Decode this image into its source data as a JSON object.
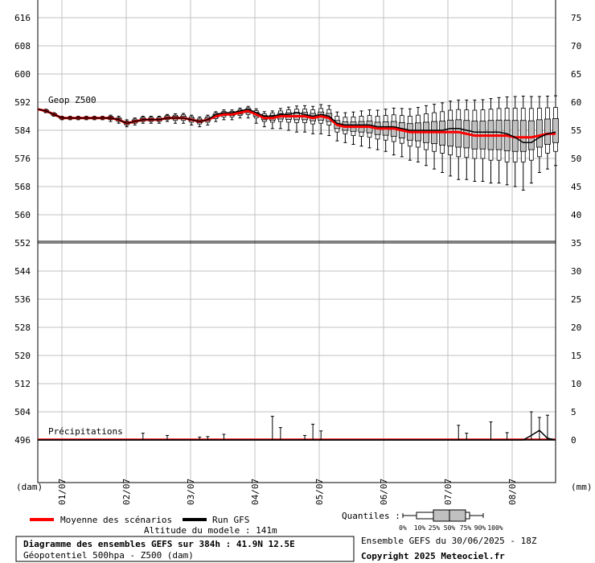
{
  "chart_data": {
    "type": "line",
    "title": "Diagramme des ensembles GEFS sur 384h : 41.9N 12.5E",
    "subtitle": "Géopotentiel 500hpa - Z500 (dam)",
    "run_info": "Ensemble GEFS du 30/06/2025 - 18Z",
    "copyright": "Copyright 2025 Meteociel.fr",
    "altitude": "Altitude du modele : 141m",
    "panel_top_label": "Geop Z500",
    "panel_bottom_label": "Précipitations",
    "left_unit": "(dam)",
    "right_unit": "(mm)",
    "left_ticks": [
      "616",
      "608",
      "600",
      "592",
      "584",
      "576",
      "568",
      "560",
      "552",
      "544",
      "536",
      "528",
      "520",
      "512",
      "504",
      "496"
    ],
    "right_ticks": [
      "75",
      "70",
      "65",
      "60",
      "55",
      "50",
      "45",
      "40",
      "35",
      "30",
      "25",
      "20",
      "15",
      "10",
      "5",
      "0"
    ],
    "x_labels": [
      "01/07",
      "02/07",
      "03/07",
      "04/07",
      "05/07",
      "06/07",
      "07/07",
      "08/07"
    ],
    "legend": {
      "mean": "Moyenne des scénarios",
      "run": "Run GFS",
      "quantiles_label": "Quantiles :",
      "quantile_marks": [
        "0%",
        "10%",
        "25%",
        "50%",
        "75%",
        "90%",
        "100%"
      ]
    },
    "colors": {
      "mean": "#ff0000",
      "run": "#000000",
      "box": "#c0c0c0",
      "grid": "#c0c0c0"
    },
    "z500": {
      "x_hours": [
        0,
        6,
        12,
        18,
        24,
        30,
        36,
        42,
        48,
        54,
        60,
        66,
        72,
        78,
        84,
        90,
        96,
        102,
        108,
        114,
        120,
        126,
        132,
        138,
        144,
        150,
        156,
        162,
        168,
        174,
        180,
        186,
        192,
        198,
        204,
        210,
        216,
        222,
        228,
        234,
        240,
        246,
        252,
        258,
        264,
        270,
        276,
        282,
        288,
        294,
        300,
        306,
        312,
        318,
        324,
        330,
        336,
        342,
        348,
        354,
        360,
        366,
        372,
        378,
        384
      ],
      "mean": [
        590,
        589.5,
        588.5,
        587.5,
        587.5,
        587.5,
        587.5,
        587.5,
        587.5,
        587.5,
        587,
        586,
        586.5,
        587,
        587,
        587,
        587.5,
        587.5,
        587.5,
        587,
        586.5,
        587,
        588,
        588.5,
        588.5,
        589,
        589.5,
        588.5,
        587.5,
        587.5,
        588,
        588,
        588,
        588,
        587.5,
        588,
        587.5,
        585.5,
        585,
        585,
        585,
        585,
        584.5,
        584.5,
        584.5,
        584,
        583.5,
        583.5,
        583.5,
        583.5,
        583.5,
        583.5,
        583.5,
        583,
        582.5,
        582.5,
        582.5,
        582.5,
        582.5,
        582,
        582,
        582,
        582.5,
        583,
        583
      ],
      "run": [
        590,
        589.5,
        588.5,
        587.5,
        587.5,
        587.5,
        587.5,
        587.5,
        587.5,
        587.5,
        587,
        586,
        586.5,
        587,
        587,
        587,
        587.5,
        587.5,
        587.5,
        587,
        586.5,
        587,
        588.5,
        589,
        589,
        589.5,
        590,
        589,
        588,
        588,
        588.5,
        588.5,
        589,
        588.5,
        588,
        588.5,
        588,
        586,
        585.5,
        585.5,
        585.5,
        585.5,
        585,
        585,
        585,
        584.5,
        584,
        584,
        584,
        584,
        584,
        584.5,
        584.5,
        584,
        583.5,
        583.5,
        583.5,
        583.5,
        583,
        582,
        580.5,
        580.5,
        582,
        583,
        583.5
      ],
      "q0": [
        590,
        589,
        588,
        587,
        587,
        587,
        587,
        587,
        587,
        586.5,
        586,
        585,
        585.5,
        586,
        586,
        586,
        586.5,
        586,
        586,
        585.5,
        585,
        585.5,
        586.5,
        587,
        587,
        587.5,
        587.5,
        586,
        585,
        584.5,
        584.5,
        584,
        583.5,
        583.5,
        583,
        583,
        582.5,
        581,
        580.5,
        580,
        579.5,
        579,
        578.5,
        578,
        577,
        576.5,
        575.5,
        575,
        574,
        573,
        572,
        571,
        570,
        570,
        569.5,
        569.5,
        569,
        569,
        568.5,
        568,
        567,
        569,
        572,
        573,
        574
      ],
      "q10": [
        590,
        589.2,
        588.2,
        587.2,
        587.2,
        587.2,
        587.2,
        587.2,
        587.2,
        587,
        586.5,
        585.5,
        586,
        586.5,
        586.5,
        586.5,
        587,
        586.8,
        586.8,
        586.3,
        585.8,
        586.3,
        587.3,
        587.8,
        587.8,
        588.2,
        588.5,
        587.5,
        586.5,
        586.3,
        586.5,
        586.3,
        586.2,
        586.2,
        585.8,
        586,
        585.5,
        583.5,
        583,
        582.5,
        582.3,
        582,
        581.5,
        581.2,
        580.8,
        580.3,
        579.5,
        579.2,
        578.5,
        578,
        577.5,
        577,
        576.5,
        576.3,
        576,
        576,
        575.5,
        575.5,
        575,
        575,
        575,
        575.5,
        576.5,
        577.5,
        578
      ],
      "q25": [
        590,
        589.4,
        588.4,
        587.4,
        587.4,
        587.4,
        587.4,
        587.4,
        587.4,
        587.2,
        586.8,
        585.8,
        586.3,
        586.8,
        586.8,
        586.8,
        587.3,
        587.2,
        587.2,
        586.7,
        586.2,
        586.7,
        587.7,
        588.2,
        588.2,
        588.6,
        589,
        588,
        587,
        586.9,
        587.2,
        587.1,
        587,
        587,
        586.7,
        586.9,
        586.5,
        584.5,
        584,
        583.7,
        583.5,
        583.3,
        582.8,
        582.6,
        582.3,
        581.8,
        581.2,
        581,
        580.5,
        580.2,
        579.8,
        579.5,
        579.2,
        579,
        578.7,
        578.7,
        578.5,
        578.5,
        578.2,
        578,
        578,
        578.5,
        579.2,
        580,
        580.5
      ],
      "q75": [
        590,
        589.7,
        588.7,
        587.7,
        587.7,
        587.7,
        587.7,
        587.7,
        587.7,
        587.8,
        587.4,
        586.4,
        586.9,
        587.4,
        587.4,
        587.4,
        587.9,
        588,
        588,
        587.5,
        587,
        587.5,
        588.5,
        589,
        589,
        589.5,
        590,
        589.1,
        588.2,
        588.3,
        588.8,
        589,
        589.1,
        589.1,
        588.8,
        589.2,
        588.8,
        586.8,
        586.4,
        586.4,
        586.5,
        586.6,
        586.3,
        586.4,
        586.5,
        586.2,
        585.9,
        586.1,
        586.3,
        586.5,
        586.6,
        586.9,
        587,
        586.8,
        586.6,
        586.6,
        586.8,
        586.9,
        586.9,
        586.8,
        586.8,
        586.7,
        587,
        587.2,
        587.3
      ],
      "q90": [
        590,
        589.8,
        588.8,
        587.8,
        587.8,
        587.8,
        587.8,
        587.8,
        587.8,
        588,
        587.6,
        586.6,
        587.2,
        587.7,
        587.7,
        587.7,
        588.2,
        588.3,
        588.4,
        587.9,
        587.4,
        587.9,
        588.9,
        589.4,
        589.4,
        589.9,
        590.4,
        589.6,
        588.7,
        588.9,
        589.5,
        589.8,
        590,
        590,
        589.8,
        590.2,
        589.9,
        588,
        587.7,
        587.8,
        588,
        588.2,
        588,
        588.2,
        588.4,
        588.2,
        588,
        588.3,
        588.7,
        589,
        589.3,
        589.7,
        589.9,
        589.8,
        589.7,
        589.8,
        590,
        590.2,
        590.3,
        590.3,
        590.3,
        590.2,
        590.3,
        590.4,
        590.5
      ],
      "q100": [
        590,
        590,
        589,
        588,
        588,
        588,
        588,
        588,
        588,
        588.3,
        588,
        587,
        587.5,
        588,
        588,
        588,
        588.5,
        588.7,
        588.8,
        588.3,
        587.8,
        588.3,
        589.3,
        589.8,
        589.8,
        590.3,
        590.8,
        590.1,
        589.3,
        589.5,
        590.2,
        590.6,
        590.9,
        591,
        590.8,
        591.3,
        591,
        589.2,
        589,
        589.2,
        589.5,
        589.8,
        589.7,
        590,
        590.3,
        590.2,
        590.1,
        590.5,
        591,
        591.4,
        591.8,
        592.3,
        592.6,
        592.6,
        592.6,
        592.7,
        593,
        593.3,
        593.5,
        593.6,
        593.7,
        593.6,
        593.6,
        593.7,
        593.8
      ]
    },
    "precip_spikes_hours": [
      78,
      96,
      120,
      126,
      138,
      174,
      180,
      198,
      204,
      210,
      312,
      318,
      336,
      348,
      366,
      372,
      378
    ],
    "precip_spikes_mm": [
      1.2,
      0.8,
      0.5,
      0.6,
      1.0,
      4.2,
      2.2,
      0.8,
      2.8,
      1.6,
      2.6,
      1.2,
      3.2,
      1.3,
      5.0,
      4.0,
      4.4
    ],
    "precip_mean_mm": 0.1,
    "precip_run_hours": [
      0,
      324,
      330,
      336,
      342,
      348,
      354,
      360,
      366,
      372,
      378,
      384
    ],
    "precip_run_mm": [
      0,
      0,
      0,
      0,
      0,
      0,
      0,
      0,
      0.8,
      1.7,
      0.3,
      0
    ]
  }
}
